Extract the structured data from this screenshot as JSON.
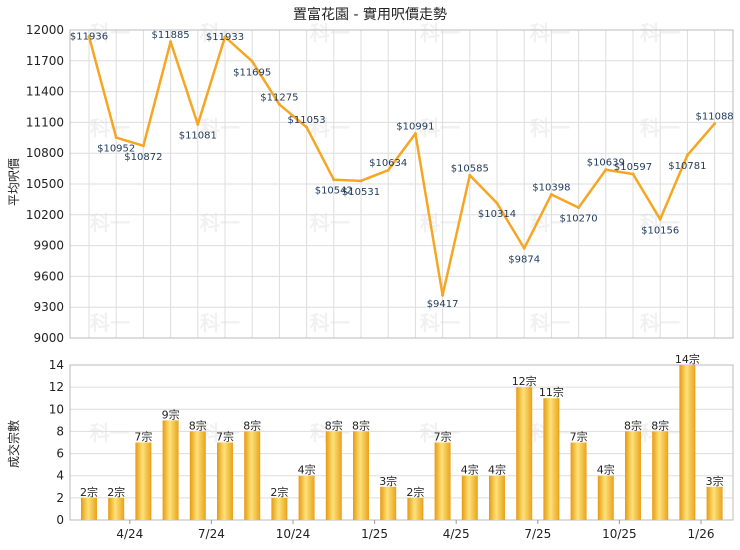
{
  "chart_data": [
    {
      "type": "line",
      "title": "置富花園 - 實用呎價走勢",
      "ylabel": "平均呎價",
      "ylim": [
        9000,
        12000
      ],
      "yticks": [
        9000,
        9300,
        9600,
        9900,
        10200,
        10500,
        10800,
        11100,
        11400,
        11700,
        12000
      ],
      "grid": true,
      "series": [
        {
          "values": [
            11936,
            10952,
            10872,
            11885,
            11081,
            11933,
            11695,
            11275,
            11053,
            10542,
            10531,
            10634,
            10991,
            9417,
            10585,
            10314,
            9874,
            10398,
            10270,
            10639,
            10597,
            10156,
            10781,
            11088
          ],
          "labels": [
            "$11936",
            "$10952",
            "$10872",
            "$11885",
            "$11081",
            "$11933",
            "$11695",
            "$11275",
            "$11053",
            "$10542",
            "$10531",
            "$10634",
            "$10991",
            "$9417",
            "$10585",
            "$10314",
            "$9874",
            "$10398",
            "$10270",
            "$10639",
            "$10597",
            "$10156",
            "$10781",
            "$11088"
          ],
          "color": "#f5a623"
        }
      ]
    },
    {
      "type": "bar",
      "ylabel": "成交宗數",
      "ylim": [
        0,
        14
      ],
      "yticks": [
        0,
        2,
        4,
        6,
        8,
        10,
        12,
        14
      ],
      "grid": true,
      "x_tick_labels": [
        "4/24",
        "7/24",
        "10/24",
        "1/25",
        "4/25",
        "7/25",
        "10/25",
        "1/26"
      ],
      "series": [
        {
          "values": [
            2,
            2,
            7,
            9,
            8,
            7,
            8,
            2,
            4,
            8,
            8,
            3,
            2,
            7,
            4,
            4,
            12,
            11,
            7,
            4,
            8,
            8,
            14,
            3
          ],
          "labels": [
            "2宗",
            "2宗",
            "7宗",
            "9宗",
            "8宗",
            "7宗",
            "8宗",
            "2宗",
            "4宗",
            "8宗",
            "8宗",
            "3宗",
            "2宗",
            "7宗",
            "4宗",
            "4宗",
            "12宗",
            "11宗",
            "7宗",
            "4宗",
            "8宗",
            "8宗",
            "14宗",
            "3宗"
          ],
          "color": "#f5b82e"
        }
      ]
    }
  ],
  "watermark": "科一"
}
